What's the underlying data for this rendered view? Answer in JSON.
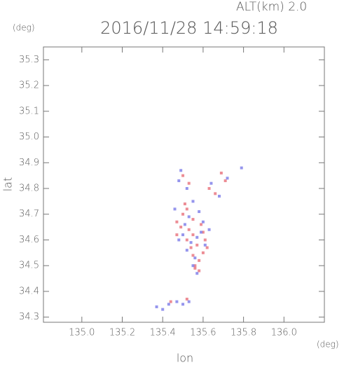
{
  "chart_data": {
    "type": "scatter",
    "title": "2016/11/28 14:59:18",
    "altitude_label": "ALT(km) 2.0",
    "y_unit": "(deg)",
    "x_unit": "(deg)",
    "xlabel": "lon",
    "ylabel": "lat",
    "xlim": [
      134.81,
      136.2
    ],
    "ylim": [
      34.28,
      35.35
    ],
    "xticks": [
      {
        "value": 135,
        "label": "135.0"
      },
      135.2,
      135.4,
      135.6,
      135.8,
      {
        "value": 136,
        "label": "136.0"
      }
    ],
    "yticks": [
      34.3,
      34.4,
      34.5,
      34.6,
      34.7,
      34.8,
      34.9,
      {
        "value": 35,
        "label": "35.0"
      },
      35.1,
      35.2,
      35.3
    ],
    "series": [
      {
        "color": "#e8707a",
        "x": [
          135.52,
          135.55,
          135.57,
          135.6,
          135.58,
          135.54,
          135.56,
          135.61,
          135.53,
          135.59,
          135.5,
          135.52,
          135.55,
          135.49,
          135.47,
          135.51,
          135.63,
          135.66,
          135.69,
          135.71,
          135.5,
          135.53,
          135.56,
          135.58,
          135.55,
          135.6,
          135.62,
          135.47,
          135.44,
          135.52
        ],
        "y": [
          34.6,
          34.62,
          34.58,
          34.55,
          34.52,
          34.57,
          34.49,
          34.6,
          34.64,
          34.66,
          34.7,
          34.72,
          34.68,
          34.65,
          34.67,
          34.74,
          34.8,
          34.78,
          34.86,
          34.83,
          34.85,
          34.82,
          34.5,
          34.48,
          34.54,
          34.63,
          34.57,
          34.62,
          34.36,
          34.37
        ]
      },
      {
        "color": "#7b7be8",
        "x": [
          135.54,
          135.57,
          135.59,
          135.52,
          135.56,
          135.61,
          135.5,
          135.48,
          135.53,
          135.58,
          135.6,
          135.63,
          135.46,
          135.51,
          135.55,
          135.64,
          135.68,
          135.79,
          135.72,
          135.49,
          135.52,
          135.48,
          135.55,
          135.57,
          135.37,
          135.4,
          135.43,
          135.47,
          135.5,
          135.53
        ],
        "y": [
          34.59,
          34.61,
          34.63,
          34.56,
          34.53,
          34.58,
          34.62,
          34.6,
          34.69,
          34.71,
          34.67,
          34.64,
          34.72,
          34.66,
          34.75,
          34.82,
          34.77,
          34.88,
          34.84,
          34.87,
          34.8,
          34.83,
          34.5,
          34.47,
          34.34,
          34.33,
          34.35,
          34.36,
          34.35,
          34.36
        ]
      }
    ]
  }
}
